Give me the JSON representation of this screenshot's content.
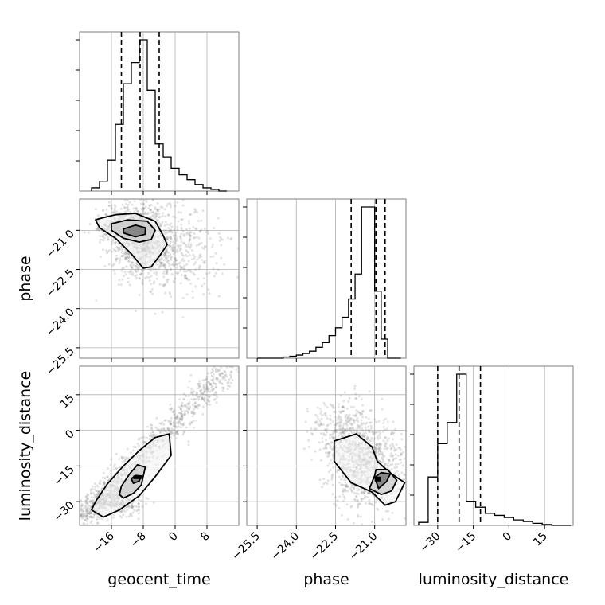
{
  "chart_data": {
    "type": "corner",
    "grid": true,
    "parameters": [
      {
        "name": "geocent_time",
        "label": "geocent_time",
        "range": [
          -24,
          16
        ],
        "ticks": [
          -16,
          -8,
          0,
          8
        ],
        "tick_labels": [
          "−16",
          "−8",
          "0",
          "8"
        ]
      },
      {
        "name": "phase",
        "label": "phase",
        "range": [
          -25.9,
          -19.8
        ],
        "ticks": [
          -25.5,
          -24.0,
          -22.5,
          -21.0
        ],
        "tick_labels": [
          "−25.5",
          "−24.0",
          "−22.5",
          "−21.0"
        ]
      },
      {
        "name": "luminosity_distance",
        "label": "luminosity_distance",
        "range": [
          -40,
          27
        ],
        "ticks": [
          -30,
          -15,
          0,
          15
        ],
        "tick_labels": [
          "−30",
          "−15",
          "0",
          "15"
        ]
      }
    ],
    "histograms": [
      {
        "param": "geocent_time",
        "bins": [
          -21,
          -19,
          -17,
          -15,
          -13,
          -11,
          -9,
          -7,
          -5,
          -3,
          -1,
          1,
          3,
          5,
          7,
          9,
          11,
          13
        ],
        "heights": [
          2,
          6,
          19,
          41,
          66,
          79,
          93,
          62,
          29,
          21,
          14,
          10,
          7,
          4,
          2,
          1,
          0
        ],
        "quantiles": [
          -13.5,
          -8.8,
          -4.0
        ]
      },
      {
        "param": "phase",
        "bins": [
          -25.5,
          -25.25,
          -25.0,
          -24.75,
          -24.5,
          -24.25,
          -24.0,
          -23.75,
          -23.5,
          -23.25,
          -23.0,
          -22.75,
          -22.5,
          -22.25,
          -22.0,
          -21.75,
          -21.5,
          -21.25,
          -21.0,
          -20.75,
          -20.5,
          -20.25,
          -20.0
        ],
        "heights": [
          0,
          0,
          0,
          0,
          0.3,
          0.5,
          0.8,
          1.2,
          1.8,
          2.8,
          4.0,
          5.8,
          7.8,
          10.5,
          15.2,
          21.6,
          38.8,
          38.8,
          17.2,
          4.9,
          0,
          0
        ],
        "quantiles": [
          -21.9,
          -20.95,
          -20.6
        ]
      },
      {
        "param": "luminosity_distance",
        "bins": [
          -38,
          -34,
          -30,
          -26,
          -22,
          -18,
          -14,
          -10,
          -6,
          -2,
          2,
          6,
          10,
          14,
          18,
          22,
          26
        ],
        "heights": [
          1,
          16,
          27,
          34,
          50,
          8,
          6,
          4,
          3.3,
          2.6,
          1.8,
          1.3,
          0.7,
          0.3,
          0,
          0
        ],
        "quantiles": [
          -30.0,
          -21.0,
          -12.0
        ]
      }
    ],
    "contours": [
      {
        "x_param": "geocent_time",
        "y_param": "phase",
        "levels": [
          [
            [
              -19,
              -20.55
            ],
            [
              -15,
              -20.4
            ],
            [
              -10,
              -20.35
            ],
            [
              -5,
              -20.65
            ],
            [
              -3,
              -21.2
            ],
            [
              -2,
              -21.55
            ],
            [
              -4,
              -22.0
            ],
            [
              -6,
              -22.4
            ],
            [
              -8,
              -22.45
            ],
            [
              -11,
              -21.9
            ],
            [
              -15,
              -21.3
            ],
            [
              -19,
              -20.9
            ],
            [
              -20,
              -20.6
            ],
            [
              -19,
              -20.55
            ]
          ],
          [
            [
              -16,
              -20.75
            ],
            [
              -12,
              -20.6
            ],
            [
              -7,
              -20.65
            ],
            [
              -5,
              -21.0
            ],
            [
              -6,
              -21.35
            ],
            [
              -9,
              -21.45
            ],
            [
              -13,
              -21.3
            ],
            [
              -16,
              -21.0
            ],
            [
              -16,
              -20.75
            ]
          ],
          [
            [
              -13,
              -20.95
            ],
            [
              -10,
              -20.8
            ],
            [
              -7.5,
              -20.9
            ],
            [
              -7.5,
              -21.15
            ],
            [
              -10,
              -21.25
            ],
            [
              -13,
              -21.1
            ],
            [
              -13,
              -20.95
            ]
          ]
        ],
        "peak": [
          [
            -11,
            -21.0
          ],
          [
            -8.8,
            -21.0
          ]
        ],
        "samples": [
          {
            "center": [
              -9,
              -21.25
            ],
            "spread": [
              4.0,
              0.7
            ],
            "count": 900
          },
          {
            "center": [
              -14,
              -20.8
            ],
            "spread": [
              3.0,
              0.25
            ],
            "count": 280
          },
          {
            "center": [
              0,
              -21.8
            ],
            "spread": [
              6.0,
              0.8
            ],
            "count": 450
          }
        ]
      },
      {
        "x_param": "geocent_time",
        "y_param": "luminosity_distance",
        "levels": [
          [
            [
              -21,
              -33.5
            ],
            [
              -18,
              -36.5
            ],
            [
              -14,
              -33.5
            ],
            [
              -9,
              -27.5
            ],
            [
              -5,
              -19.5
            ],
            [
              -1,
              -10.5
            ],
            [
              -1.5,
              -1.5
            ],
            [
              -5,
              -3.0
            ],
            [
              -9,
              -8.5
            ],
            [
              -13,
              -15.0
            ],
            [
              -17,
              -22.5
            ],
            [
              -20,
              -30.0
            ],
            [
              -21,
              -33.5
            ]
          ],
          [
            [
              -13,
              -28.5
            ],
            [
              -10.5,
              -26.5
            ],
            [
              -8.5,
              -23.0
            ],
            [
              -7.5,
              -15.5
            ],
            [
              -9.5,
              -14.5
            ],
            [
              -11.5,
              -18.5
            ],
            [
              -13.5,
              -23.5
            ],
            [
              -14,
              -27.0
            ],
            [
              -13,
              -28.5
            ]
          ],
          [
            [
              -10.5,
              -22.3
            ],
            [
              -9,
              -21.3
            ],
            [
              -8.5,
              -19.2
            ],
            [
              -10,
              -19.0
            ],
            [
              -11,
              -20.4
            ],
            [
              -10.5,
              -22.3
            ]
          ]
        ],
        "peak": [
          [
            -10.5,
            -20.5
          ],
          [
            -8.0,
            -19.0
          ]
        ],
        "samples": [
          {
            "diagonal": [
              [
                -23,
                -36
              ],
              [
                14,
                27
              ]
            ],
            "width": 3.0,
            "count": 1100
          },
          {
            "center": [
              -14,
              -30
            ],
            "spread": [
              3.0,
              3.0
            ],
            "count": 250
          }
        ]
      },
      {
        "x_param": "phase",
        "y_param": "luminosity_distance",
        "levels": [
          [
            [
              -22.55,
              -4.5
            ],
            [
              -21.7,
              -1.5
            ],
            [
              -21.1,
              -7.0
            ],
            [
              -20.9,
              -13.0
            ],
            [
              -20.4,
              -18.0
            ],
            [
              -19.85,
              -22.0
            ],
            [
              -20.2,
              -30.0
            ],
            [
              -20.6,
              -31.5
            ],
            [
              -21.1,
              -26.0
            ],
            [
              -21.9,
              -22.0
            ],
            [
              -22.55,
              -13.0
            ],
            [
              -22.55,
              -4.5
            ]
          ],
          [
            [
              -20.95,
              -16.5
            ],
            [
              -20.5,
              -16.5
            ],
            [
              -20.15,
              -21.0
            ],
            [
              -20.35,
              -25.5
            ],
            [
              -20.75,
              -27.0
            ],
            [
              -21.2,
              -24.5
            ],
            [
              -21.0,
              -19.0
            ],
            [
              -20.95,
              -16.5
            ]
          ],
          [
            [
              -20.75,
              -17.8
            ],
            [
              -20.4,
              -18.4
            ],
            [
              -20.55,
              -21.6
            ],
            [
              -20.85,
              -24.5
            ],
            [
              -21.0,
              -19.8
            ],
            [
              -20.75,
              -17.8
            ]
          ]
        ],
        "peak": [
          [
            -21.0,
            -19.5
          ],
          [
            -20.75,
            -21.5
          ]
        ],
        "samples": [
          {
            "center": [
              -21.3,
              -15
            ],
            "spread": [
              0.7,
              9.0
            ],
            "count": 900
          },
          {
            "center": [
              -22.2,
              0
            ],
            "spread": [
              0.6,
              7.0
            ],
            "count": 300
          }
        ]
      }
    ]
  }
}
